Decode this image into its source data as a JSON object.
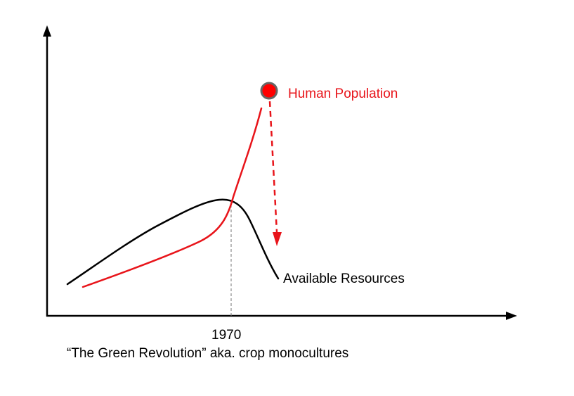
{
  "labels": {
    "population": "Human Population",
    "resources": "Available Resources",
    "year": "1970",
    "caption": "“The Green Revolution” aka. crop monocultures"
  },
  "colors": {
    "population": "#e8141a",
    "resources": "#000000",
    "marker_fill": "#ff0000",
    "marker_stroke": "#666666",
    "axis": "#000000",
    "guide": "#777777"
  },
  "icons": {
    "axis_arrows": "arrowhead",
    "population_marker": "circle-dot",
    "collapse_arrow": "dashed-arrow-down"
  }
}
